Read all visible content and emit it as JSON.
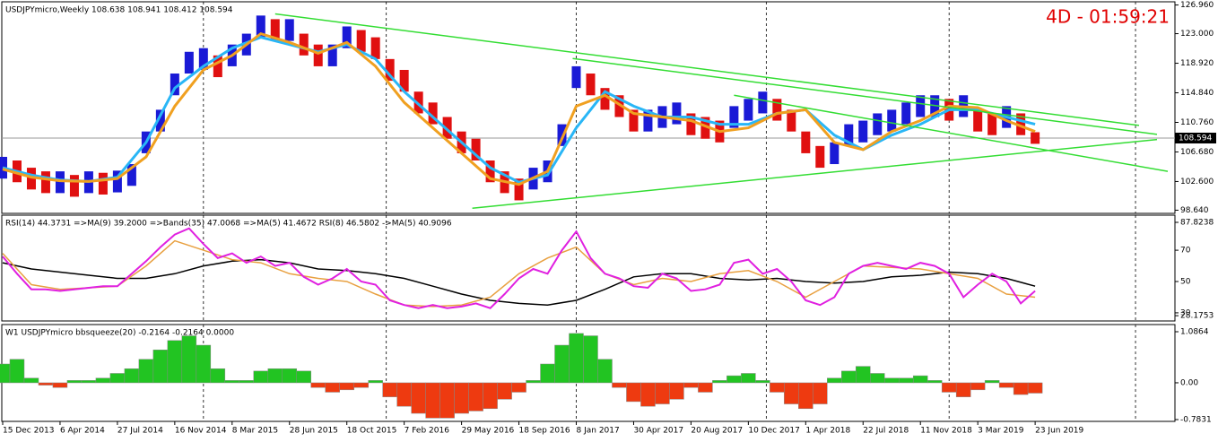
{
  "chart_data": [
    {
      "type": "ohlc",
      "title": "USDJPYmicro,Weekly  108.638 108.941 108.412 108.594",
      "timer": "4D - 01:59:21",
      "xlim": [
        0,
        327
      ],
      "ylim": [
        98.2,
        127.4
      ],
      "yticks": [
        {
          "value": 126.96,
          "label": "126.960"
        },
        {
          "value": 123,
          "label": "123.000"
        },
        {
          "value": 118.92,
          "label": "118.920"
        },
        {
          "value": 114.84,
          "label": "114.840"
        },
        {
          "value": 110.76,
          "label": "110.760"
        },
        {
          "value": 106.68,
          "label": "106.680"
        },
        {
          "value": 102.6,
          "label": "102.600"
        },
        {
          "value": 98.64,
          "label": "98.640"
        }
      ],
      "xgrid": [
        56,
        107,
        160,
        213,
        264,
        316
      ],
      "up_color": "#1a1ad6",
      "down_color": "#e01010",
      "x": [
        0,
        4,
        8,
        12,
        16,
        20,
        24,
        28,
        32,
        36,
        40,
        44,
        48,
        52,
        56,
        60,
        64,
        68,
        72,
        76,
        80,
        84,
        88,
        92,
        96,
        100,
        104,
        108,
        112,
        116,
        120,
        124,
        128,
        132,
        136,
        140,
        144,
        148,
        152,
        156,
        160,
        164,
        168,
        172,
        176,
        180,
        184,
        188,
        192,
        196,
        200,
        204,
        208,
        212,
        216,
        220,
        224,
        228,
        232,
        236,
        240,
        244,
        248,
        252,
        256,
        260,
        264,
        268,
        272,
        276,
        280,
        284,
        288
      ],
      "high": [
        106,
        105.5,
        104.5,
        104,
        104,
        103.5,
        104,
        103.8,
        104.1,
        105,
        109.5,
        112.5,
        117.5,
        120.5,
        121,
        120,
        121.5,
        123,
        125.5,
        125,
        125,
        123,
        121.5,
        121.5,
        124,
        123.5,
        122.5,
        119.5,
        118,
        115,
        113.5,
        111.5,
        109.5,
        108.5,
        105.5,
        104,
        103,
        104.5,
        105.5,
        110.5,
        118.5,
        117.5,
        115.5,
        114.5,
        112.5,
        112.5,
        113,
        113.5,
        112,
        111.5,
        111,
        113,
        114,
        115,
        114,
        112.5,
        109.5,
        107.5,
        108,
        110.5,
        111,
        112,
        112.5,
        113.5,
        114.5,
        114.5,
        114,
        114.5,
        112.5,
        112,
        113,
        112,
        109.4
      ],
      "low": [
        103,
        102.5,
        101.5,
        101,
        101,
        100.5,
        101,
        100.8,
        101.1,
        102,
        106.5,
        109.5,
        114.5,
        117.5,
        118,
        117,
        118.5,
        120,
        122.5,
        122,
        122,
        120,
        118.5,
        118.5,
        121,
        120.5,
        119.5,
        116.5,
        115,
        112,
        110.5,
        108.5,
        106.5,
        105.5,
        102.5,
        101,
        100,
        101.5,
        102.5,
        107.5,
        115.5,
        114.5,
        112.5,
        111.5,
        109.5,
        109.5,
        110,
        110.5,
        109,
        108.5,
        108,
        110,
        111,
        112,
        111,
        109.5,
        106.5,
        104.5,
        105,
        107.5,
        108,
        109,
        109.5,
        110.5,
        111.5,
        111.5,
        111,
        111.5,
        109.5,
        109,
        110,
        109,
        107.8
      ],
      "series": [
        {
          "color": "#29b6f6",
          "x": [
            0,
            8,
            16,
            24,
            32,
            40,
            48,
            56,
            64,
            72,
            80,
            88,
            96,
            104,
            112,
            120,
            128,
            136,
            144,
            152,
            160,
            168,
            176,
            184,
            192,
            200,
            208,
            216,
            224,
            232,
            240,
            248,
            256,
            264,
            272,
            280,
            288
          ],
          "values": [
            104.5,
            103.5,
            102.8,
            102.6,
            103.2,
            108,
            115.5,
            118.5,
            121,
            122.5,
            121.5,
            120.5,
            121.5,
            119.5,
            115,
            111.5,
            108,
            104.5,
            102.5,
            103.5,
            110,
            115,
            113,
            111.5,
            111.5,
            110.5,
            110.5,
            112,
            112.5,
            109,
            107,
            109,
            110.5,
            112.5,
            112.5,
            111.5,
            110.5
          ]
        },
        {
          "color": "#f0a020",
          "x": [
            0,
            8,
            16,
            24,
            32,
            40,
            48,
            56,
            64,
            72,
            80,
            88,
            96,
            104,
            112,
            120,
            128,
            136,
            144,
            152,
            160,
            168,
            176,
            184,
            192,
            200,
            208,
            216,
            224,
            232,
            240,
            248,
            256,
            264,
            272,
            280,
            288
          ],
          "values": [
            104.3,
            103.2,
            102.7,
            102.6,
            103,
            106,
            113,
            118,
            120,
            123,
            121.8,
            120.3,
            121.8,
            118.5,
            113.5,
            110,
            106.5,
            103,
            102.2,
            104,
            113,
            114.5,
            112,
            111.5,
            111,
            109.5,
            110,
            112,
            112.5,
            108,
            107,
            109.5,
            111,
            113,
            112.8,
            111,
            109.5
          ]
        }
      ],
      "trendlines": [
        {
          "color": "#33dd33",
          "x": [
            76,
            317
          ],
          "y": [
            125.73,
            110.34
          ]
        },
        {
          "color": "#33dd33",
          "x": [
            159,
            322
          ],
          "y": [
            119.58,
            109.1
          ]
        },
        {
          "color": "#33dd33",
          "x": [
            131,
            322
          ],
          "y": [
            98.9,
            108.4
          ]
        },
        {
          "color": "#33dd33",
          "x": [
            204,
            325
          ],
          "y": [
            114.5,
            104.0
          ]
        }
      ],
      "last_price": {
        "value": 108.594,
        "label": "108.594"
      }
    },
    {
      "type": "line",
      "title": "RSI(14) 44.3731  =>MA(9) 39.2000  =>Bands(35) 47.0068  =>MA(5) 41.4672  RSI(8) 46.5802  ->MA(5) 40.9096",
      "xlim": [
        0,
        327
      ],
      "ylim": [
        24.8,
        92.4
      ],
      "yticks": [
        87.8238,
        70,
        50,
        30,
        28.1753
      ],
      "xgrid": [
        56,
        107,
        160,
        213,
        264,
        316
      ],
      "series": [
        {
          "color": "#000000",
          "x": [
            0,
            8,
            16,
            24,
            32,
            40,
            48,
            56,
            64,
            72,
            80,
            88,
            96,
            104,
            112,
            120,
            128,
            136,
            144,
            152,
            160,
            168,
            176,
            184,
            192,
            200,
            208,
            216,
            224,
            232,
            240,
            248,
            256,
            264,
            272,
            280,
            288
          ],
          "values": [
            62,
            58,
            56,
            54,
            52,
            52,
            55,
            60,
            63,
            64,
            62,
            58,
            57,
            55,
            52,
            47,
            42,
            38,
            36,
            35,
            38,
            45,
            53,
            55,
            55,
            52,
            51,
            52,
            50,
            49,
            50,
            53,
            54,
            56,
            55,
            52,
            47
          ]
        },
        {
          "color": "#e8a040",
          "x": [
            0,
            8,
            16,
            24,
            32,
            40,
            48,
            56,
            64,
            72,
            80,
            88,
            96,
            104,
            112,
            120,
            128,
            136,
            144,
            152,
            160,
            168,
            176,
            184,
            192,
            200,
            208,
            216,
            224,
            232,
            240,
            248,
            256,
            264,
            272,
            280,
            288
          ],
          "values": [
            68,
            48,
            45,
            46,
            47,
            60,
            76,
            70,
            64,
            62,
            55,
            52,
            50,
            42,
            35,
            34,
            35,
            40,
            55,
            65,
            72,
            55,
            48,
            52,
            50,
            55,
            57,
            50,
            40,
            50,
            60,
            59,
            58,
            55,
            52,
            42,
            40
          ]
        },
        {
          "color": "#e020e0",
          "x": [
            0,
            4,
            8,
            12,
            16,
            20,
            24,
            28,
            32,
            36,
            40,
            44,
            48,
            52,
            56,
            60,
            64,
            68,
            72,
            76,
            80,
            84,
            88,
            92,
            96,
            100,
            104,
            108,
            112,
            116,
            120,
            124,
            128,
            132,
            136,
            140,
            144,
            148,
            152,
            156,
            160,
            164,
            168,
            172,
            176,
            180,
            184,
            188,
            192,
            196,
            200,
            204,
            208,
            212,
            216,
            220,
            224,
            228,
            232,
            236,
            240,
            244,
            248,
            252,
            256,
            260,
            264,
            268,
            272,
            276,
            280,
            284,
            288
          ],
          "values": [
            66,
            55,
            45,
            45,
            44,
            45,
            46,
            47,
            47,
            55,
            63,
            72,
            80,
            84,
            74,
            65,
            68,
            62,
            66,
            60,
            62,
            53,
            48,
            52,
            58,
            50,
            48,
            38,
            35,
            33,
            35,
            33,
            34,
            36,
            33,
            42,
            52,
            58,
            55,
            70,
            82,
            65,
            55,
            52,
            47,
            46,
            55,
            52,
            44,
            45,
            48,
            62,
            64,
            55,
            58,
            50,
            38,
            35,
            40,
            55,
            60,
            62,
            60,
            58,
            62,
            60,
            55,
            40,
            48,
            55,
            50,
            36,
            44
          ]
        }
      ]
    },
    {
      "type": "bar",
      "title": "W1 USDJPYmicro bbsqueeze(20) -0.2164 -0.2164 0.0000",
      "xlim": [
        0,
        327
      ],
      "ylim": [
        -0.821,
        1.239
      ],
      "yticks": [
        1.0864,
        {
          "value": 0,
          "label": "0.00"
        },
        -0.7831
      ],
      "xgrid": [
        56,
        107,
        160,
        213,
        264,
        316
      ],
      "pos_color": "#22c422",
      "neg_color": "#ee3a10",
      "x": [
        0,
        4,
        8,
        12,
        16,
        20,
        24,
        28,
        32,
        36,
        40,
        44,
        48,
        52,
        56,
        60,
        64,
        68,
        72,
        76,
        80,
        84,
        88,
        92,
        96,
        100,
        104,
        108,
        112,
        116,
        120,
        124,
        128,
        132,
        136,
        140,
        144,
        148,
        152,
        156,
        160,
        164,
        168,
        172,
        176,
        180,
        184,
        188,
        192,
        196,
        200,
        204,
        208,
        212,
        216,
        220,
        224,
        228,
        232,
        236,
        240,
        244,
        248,
        252,
        256,
        260,
        264,
        268,
        272,
        276,
        280,
        284,
        288
      ],
      "values": [
        0.4,
        0.5,
        0.1,
        -0.05,
        -0.1,
        0.05,
        0.05,
        0.1,
        0.2,
        0.3,
        0.5,
        0.7,
        0.9,
        1.0,
        0.8,
        0.3,
        0.05,
        0.05,
        0.25,
        0.3,
        0.3,
        0.25,
        -0.1,
        -0.2,
        -0.15,
        -0.1,
        0.05,
        -0.3,
        -0.5,
        -0.65,
        -0.75,
        -0.75,
        -0.65,
        -0.6,
        -0.55,
        -0.35,
        -0.2,
        0.05,
        0.4,
        0.8,
        1.05,
        1.0,
        0.5,
        -0.1,
        -0.4,
        -0.5,
        -0.45,
        -0.35,
        -0.1,
        -0.2,
        0.05,
        0.15,
        0.2,
        0.05,
        -0.2,
        -0.45,
        -0.55,
        -0.45,
        0.1,
        0.25,
        0.35,
        0.2,
        0.1,
        0.1,
        0.15,
        0.05,
        -0.2,
        -0.3,
        -0.15,
        0.05,
        -0.1,
        -0.25,
        -0.22
      ],
      "xticks": [
        {
          "value": 0,
          "label": "15 Dec 2013"
        },
        {
          "value": 16,
          "label": "6 Apr 2014"
        },
        {
          "value": 32,
          "label": "27 Jul 2014"
        },
        {
          "value": 48,
          "label": "16 Nov 2014"
        },
        {
          "value": 64,
          "label": "8 Mar 2015"
        },
        {
          "value": 80,
          "label": "28 Jun 2015"
        },
        {
          "value": 96,
          "label": "18 Oct 2015"
        },
        {
          "value": 112,
          "label": "7 Feb 2016"
        },
        {
          "value": 128,
          "label": "29 May 2016"
        },
        {
          "value": 144,
          "label": "18 Sep 2016"
        },
        {
          "value": 160,
          "label": "8 Jan 2017"
        },
        {
          "value": 176,
          "label": "30 Apr 2017"
        },
        {
          "value": 192,
          "label": "20 Aug 2017"
        },
        {
          "value": 208,
          "label": "10 Dec 2017"
        },
        {
          "value": 224,
          "label": "1 Apr 2018"
        },
        {
          "value": 240,
          "label": "22 Jul 2018"
        },
        {
          "value": 256,
          "label": "11 Nov 2018"
        },
        {
          "value": 272,
          "label": "3 Mar 2019"
        },
        {
          "value": 288,
          "label": "23 Jun 2019"
        }
      ]
    }
  ]
}
